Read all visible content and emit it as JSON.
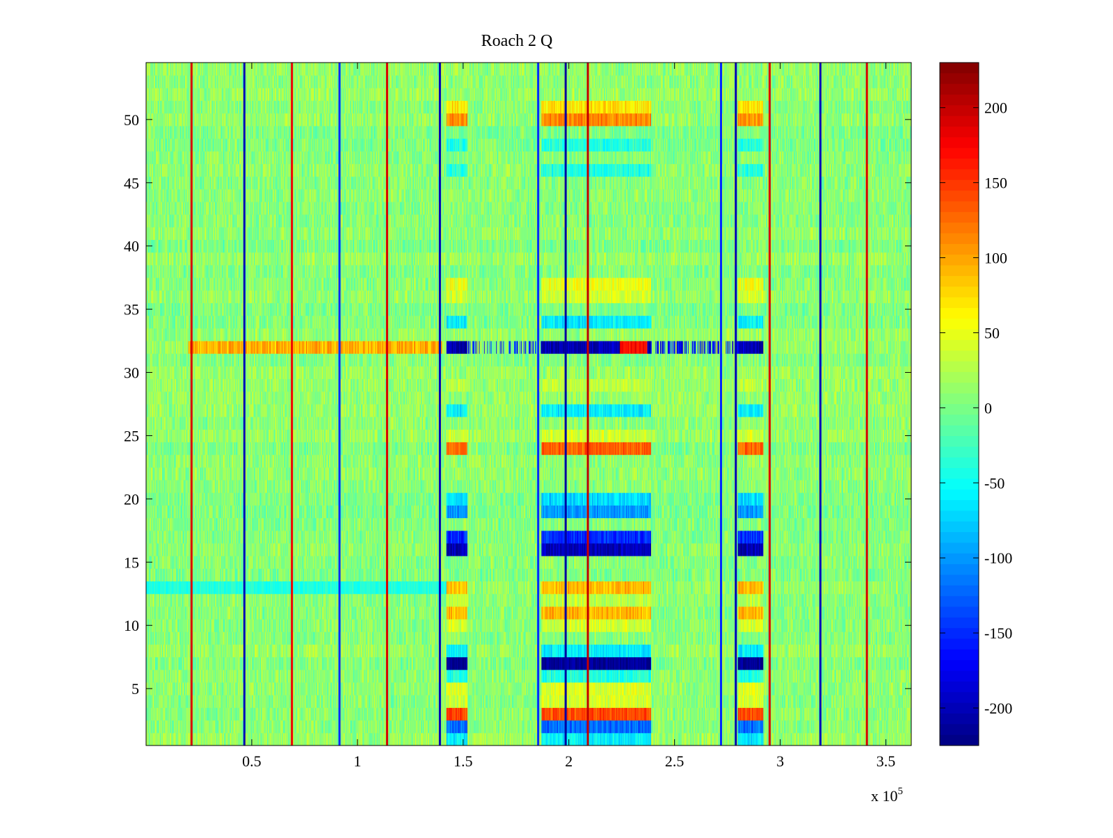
{
  "chart_data": {
    "type": "heatmap",
    "title": "Roach 2 Q",
    "xlabel": "",
    "ylabel": "",
    "x_exponent_label": {
      "base": "x 10",
      "power": "5"
    },
    "xlim": [
      0,
      3.62
    ],
    "ylim": [
      0.5,
      54.5
    ],
    "x_ticks": [
      0.5,
      1,
      1.5,
      2,
      2.5,
      3,
      3.5
    ],
    "x_tick_labels": [
      "0.5",
      "1",
      "1.5",
      "2",
      "2.5",
      "3",
      "3.5"
    ],
    "y_ticks": [
      5,
      10,
      15,
      20,
      25,
      30,
      35,
      40,
      45,
      50
    ],
    "y_tick_labels": [
      "5",
      "10",
      "15",
      "20",
      "25",
      "30",
      "35",
      "40",
      "45",
      "50"
    ],
    "rows": 54,
    "colormap": "jet",
    "clim": [
      -225,
      230
    ],
    "colorbar_ticks": [
      200,
      150,
      100,
      50,
      0,
      -50,
      -100,
      -150,
      -200
    ],
    "colorbar_tick_labels": [
      "200",
      "150",
      "100",
      "50",
      "0",
      "-50",
      "-100",
      "-150",
      "-200"
    ],
    "grid": false,
    "sample_columns": 1200,
    "baseline_mean": 8,
    "baseline_noise": 28,
    "vertical_lines": [
      {
        "x": 0.215,
        "value": 190
      },
      {
        "x": 0.465,
        "value": -200
      },
      {
        "x": 0.69,
        "value": 180
      },
      {
        "x": 0.915,
        "value": -150
      },
      {
        "x": 1.14,
        "value": 190
      },
      {
        "x": 1.39,
        "value": -200
      },
      {
        "x": 1.855,
        "value": -150
      },
      {
        "x": 1.985,
        "value": -210
      },
      {
        "x": 2.09,
        "value": 200
      },
      {
        "x": 2.72,
        "value": -150
      },
      {
        "x": 2.79,
        "value": -200
      },
      {
        "x": 2.95,
        "value": 190
      },
      {
        "x": 3.19,
        "value": -200
      },
      {
        "x": 3.41,
        "value": 190
      }
    ],
    "active_x_ranges": [
      [
        1.42,
        1.52
      ],
      [
        1.87,
        2.39
      ],
      [
        2.8,
        2.92
      ]
    ],
    "row_patterns": [
      {
        "row": 1,
        "value": -60
      },
      {
        "row": 2,
        "value": -120
      },
      {
        "row": 3,
        "value": 140
      },
      {
        "row": 4,
        "value": 40
      },
      {
        "row": 5,
        "value": 45
      },
      {
        "row": 6,
        "value": -40
      },
      {
        "row": 7,
        "value": -220
      },
      {
        "row": 8,
        "value": -60
      },
      {
        "row": 10,
        "value": 40
      },
      {
        "row": 11,
        "value": 90
      },
      {
        "row": 12,
        "value": 30
      },
      {
        "row": 13,
        "value": 90
      },
      {
        "row": 16,
        "value": -200
      },
      {
        "row": 17,
        "value": -150
      },
      {
        "row": 19,
        "value": -100
      },
      {
        "row": 20,
        "value": -70
      },
      {
        "row": 24,
        "value": 130
      },
      {
        "row": 25,
        "value": 40
      },
      {
        "row": 27,
        "value": -60
      },
      {
        "row": 29,
        "value": 30
      },
      {
        "row": 32,
        "value": -200
      },
      {
        "row": 34,
        "value": -60
      },
      {
        "row": 36,
        "value": 40
      },
      {
        "row": 37,
        "value": 50
      },
      {
        "row": 46,
        "value": -40
      },
      {
        "row": 48,
        "value": -40
      },
      {
        "row": 50,
        "value": 110
      },
      {
        "row": 51,
        "value": 70
      }
    ],
    "row32_pre_band": {
      "x": [
        0.2,
        1.4
      ],
      "value": 95
    },
    "row32_hot_spot": {
      "x": [
        2.24,
        2.37
      ],
      "value": 170
    },
    "row13_tint": {
      "x": [
        0.0,
        1.42
      ],
      "value": -40
    }
  }
}
